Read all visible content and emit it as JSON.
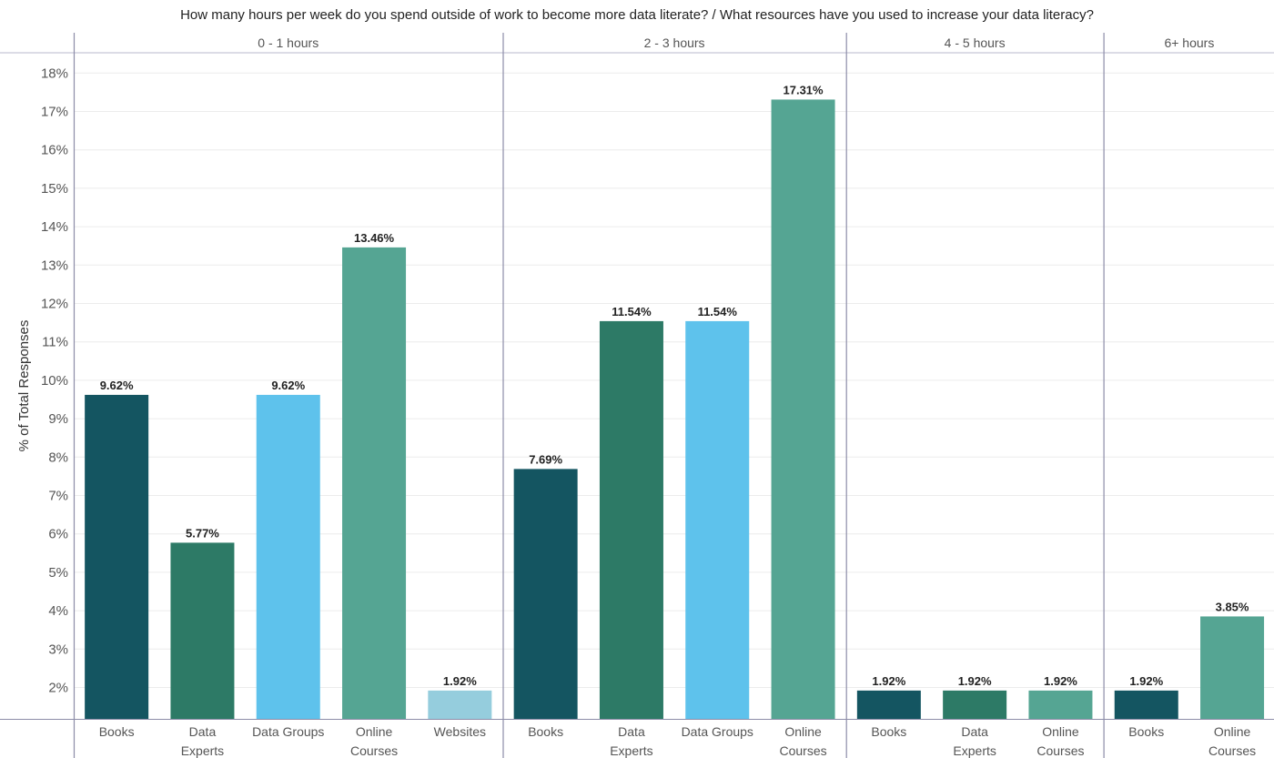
{
  "chart_data": {
    "type": "bar",
    "title": "How many hours per week do you spend outside of work to become more data literate? / What resources have you used to increase your data literacy?",
    "ylabel": "% of Total Responses",
    "ylim": [
      1.2,
      18.5
    ],
    "yticks": [
      "2%",
      "3%",
      "4%",
      "5%",
      "6%",
      "7%",
      "8%",
      "9%",
      "10%",
      "11%",
      "12%",
      "13%",
      "14%",
      "15%",
      "16%",
      "17%",
      "18%"
    ],
    "grid": true,
    "colors": {
      "Books": "#145561",
      "Data Experts": "#2d7a66",
      "Data Groups": "#5ec2ec",
      "Online Courses": "#55a593",
      "Websites": "#95cddd"
    },
    "panels": [
      {
        "header": "0 - 1 hours",
        "bars": [
          {
            "category": "Books",
            "label_lines": [
              "Books"
            ],
            "value": 9.62,
            "value_label": "9.62%"
          },
          {
            "category": "Data Experts",
            "label_lines": [
              "Data",
              "Experts"
            ],
            "value": 5.77,
            "value_label": "5.77%"
          },
          {
            "category": "Data Groups",
            "label_lines": [
              "Data Groups"
            ],
            "value": 9.62,
            "value_label": "9.62%"
          },
          {
            "category": "Online Courses",
            "label_lines": [
              "Online",
              "Courses"
            ],
            "value": 13.46,
            "value_label": "13.46%"
          },
          {
            "category": "Websites",
            "label_lines": [
              "Websites"
            ],
            "value": 1.92,
            "value_label": "1.92%"
          }
        ]
      },
      {
        "header": "2 - 3 hours",
        "bars": [
          {
            "category": "Books",
            "label_lines": [
              "Books"
            ],
            "value": 7.69,
            "value_label": "7.69%"
          },
          {
            "category": "Data Experts",
            "label_lines": [
              "Data",
              "Experts"
            ],
            "value": 11.54,
            "value_label": "11.54%"
          },
          {
            "category": "Data Groups",
            "label_lines": [
              "Data Groups"
            ],
            "value": 11.54,
            "value_label": "11.54%"
          },
          {
            "category": "Online Courses",
            "label_lines": [
              "Online",
              "Courses"
            ],
            "value": 17.31,
            "value_label": "17.31%"
          }
        ]
      },
      {
        "header": "4 - 5 hours",
        "bars": [
          {
            "category": "Books",
            "label_lines": [
              "Books"
            ],
            "value": 1.92,
            "value_label": "1.92%"
          },
          {
            "category": "Data Experts",
            "label_lines": [
              "Data",
              "Experts"
            ],
            "value": 1.92,
            "value_label": "1.92%"
          },
          {
            "category": "Online Courses",
            "label_lines": [
              "Online",
              "Courses"
            ],
            "value": 1.92,
            "value_label": "1.92%"
          }
        ]
      },
      {
        "header": "6+ hours",
        "bars": [
          {
            "category": "Books",
            "label_lines": [
              "Books"
            ],
            "value": 1.92,
            "value_label": "1.92%"
          },
          {
            "category": "Online Courses",
            "label_lines": [
              "Online",
              "Courses"
            ],
            "value": 3.85,
            "value_label": "3.85%"
          }
        ]
      }
    ]
  }
}
